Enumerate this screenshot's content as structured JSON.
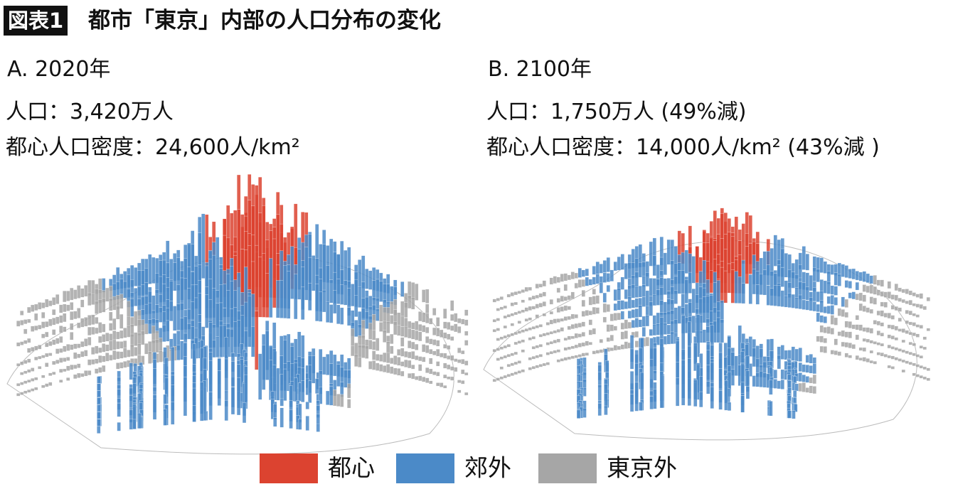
{
  "header": {
    "badge": "図表1",
    "title": "都市「東京」内部の人口分布の変化"
  },
  "panels": [
    {
      "label": "A. 2020年",
      "population": "人口：3,420万人",
      "density": "都心人口密度：24,600人/km²"
    },
    {
      "label": "B. 2100年",
      "population": "人口：1,750万人 (49%減)",
      "density": "都心人口密度：14,000人/km² (43%減 )"
    }
  ],
  "legend": [
    {
      "name": "都心",
      "color": "#dc4330"
    },
    {
      "name": "郊外",
      "color": "#4b8ac8"
    },
    {
      "name": "東京外",
      "color": "#a6a6a6"
    }
  ]
}
